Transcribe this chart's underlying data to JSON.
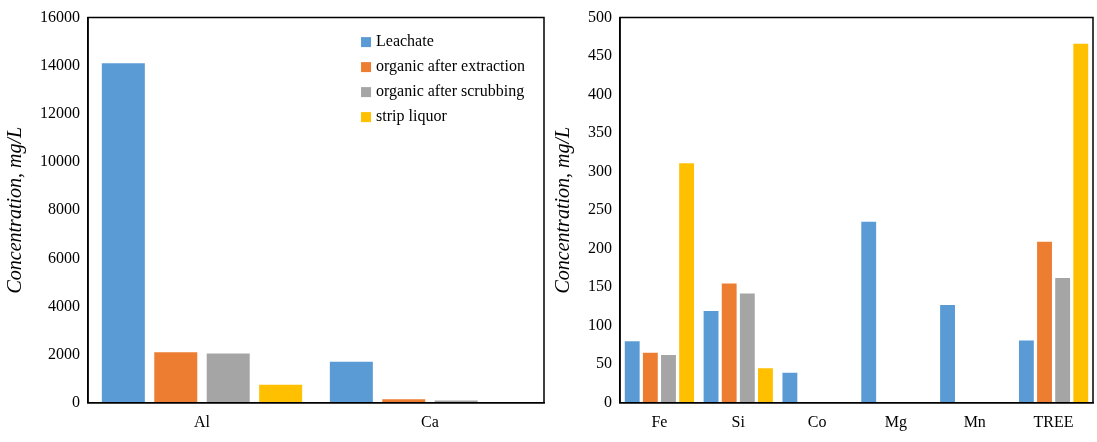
{
  "chart_data": [
    {
      "type": "bar",
      "ylabel": "Concentration, mg/L",
      "categories": [
        "Al",
        "Ca"
      ],
      "series": [
        {
          "name": "Leachate",
          "color": "#5b9bd5",
          "values": [
            14100,
            1700
          ]
        },
        {
          "name": "organic after extraction",
          "color": "#ed7d31",
          "values": [
            2100,
            150
          ]
        },
        {
          "name": "organic after scrubbing",
          "color": "#a5a5a5",
          "values": [
            2050,
            100
          ]
        },
        {
          "name": "strip liquor",
          "color": "#ffc000",
          "values": [
            750,
            0
          ]
        }
      ],
      "ylim": [
        0,
        16000
      ],
      "yticks": [
        0,
        2000,
        4000,
        6000,
        8000,
        10000,
        12000,
        14000,
        16000
      ],
      "grid": false,
      "legend": "top right"
    },
    {
      "type": "bar",
      "ylabel": "Concentration, mg/L",
      "categories": [
        "Fe",
        "Si",
        "Co",
        "Mg",
        "Mn",
        "TREE"
      ],
      "series": [
        {
          "color": "#5b9bd5",
          "values": [
            80,
            119,
            39,
            235,
            127,
            81
          ]
        },
        {
          "color": "#ed7d31",
          "values": [
            65,
            155,
            0,
            0,
            0,
            209
          ]
        },
        {
          "color": "#a5a5a5",
          "values": [
            62,
            142,
            0,
            0,
            0,
            162
          ]
        },
        {
          "color": "#ffc000",
          "values": [
            311,
            45,
            0,
            0,
            0,
            466
          ]
        }
      ],
      "ylim": [
        0,
        500
      ],
      "yticks": [
        0,
        50,
        100,
        150,
        200,
        250,
        300,
        350,
        400,
        450,
        500
      ],
      "grid": false,
      "legend": false
    }
  ]
}
